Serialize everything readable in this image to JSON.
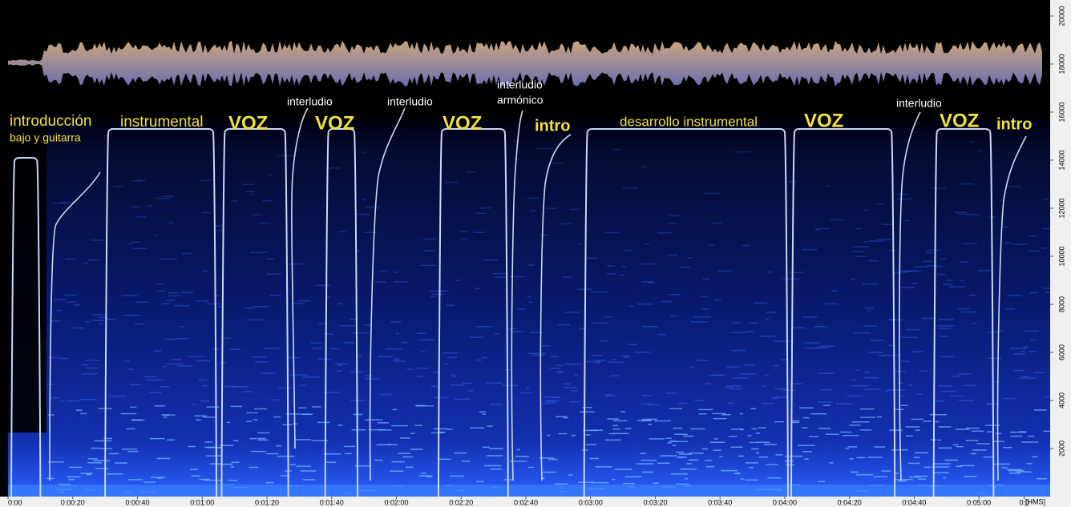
{
  "chart_data": {
    "type": "spectrogram",
    "x_label": "[HMS]",
    "xlim": [
      0,
      322
    ],
    "ylim": [
      0,
      20000
    ],
    "xticks": [
      {
        "value": 0,
        "label": "0:00"
      },
      {
        "value": 20,
        "label": "0:00:20"
      },
      {
        "value": 40,
        "label": "0:00:40"
      },
      {
        "value": 60,
        "label": "0:01:00"
      },
      {
        "value": 80,
        "label": "0:01:20"
      },
      {
        "value": 100,
        "label": "0:01:40"
      },
      {
        "value": 120,
        "label": "0:02:00"
      },
      {
        "value": 140,
        "label": "0:02:20"
      },
      {
        "value": 160,
        "label": "0:02:40"
      },
      {
        "value": 180,
        "label": "0:03:00"
      },
      {
        "value": 200,
        "label": "0:03:20"
      },
      {
        "value": 220,
        "label": "0:03:40"
      },
      {
        "value": 240,
        "label": "0:04:00"
      },
      {
        "value": 260,
        "label": "0:04:20"
      },
      {
        "value": 280,
        "label": "0:04:40"
      },
      {
        "value": 300,
        "label": "0:05:00"
      },
      {
        "value": 314,
        "label": "0:0"
      }
    ],
    "yticks": [
      2000,
      4000,
      6000,
      8000,
      10000,
      12000,
      14000,
      16000,
      18000,
      20000
    ],
    "segments": [
      {
        "start": 1,
        "end": 10
      },
      {
        "start": 30,
        "end": 64.4
      },
      {
        "start": 66,
        "end": 86.6
      },
      {
        "start": 98,
        "end": 108
      },
      {
        "start": 133,
        "end": 154.5
      },
      {
        "start": 178,
        "end": 241
      },
      {
        "start": 242,
        "end": 274
      },
      {
        "start": 286,
        "end": 304.5
      }
    ],
    "annotations": [
      {
        "text": "introducción"
      },
      {
        "text": "bajo y guitarra"
      },
      {
        "text": "instrumental"
      },
      {
        "text": "VOZ"
      },
      {
        "text": "interludio"
      },
      {
        "text": "VOZ"
      },
      {
        "text": "interludio"
      },
      {
        "text": "VOZ"
      },
      {
        "text": "interludio"
      },
      {
        "text": "armónico"
      },
      {
        "text": "intro"
      },
      {
        "text": "desarrollo instrumental"
      },
      {
        "text": "VOZ"
      },
      {
        "text": "interludio"
      },
      {
        "text": "VOZ"
      },
      {
        "text": "intro"
      }
    ]
  }
}
